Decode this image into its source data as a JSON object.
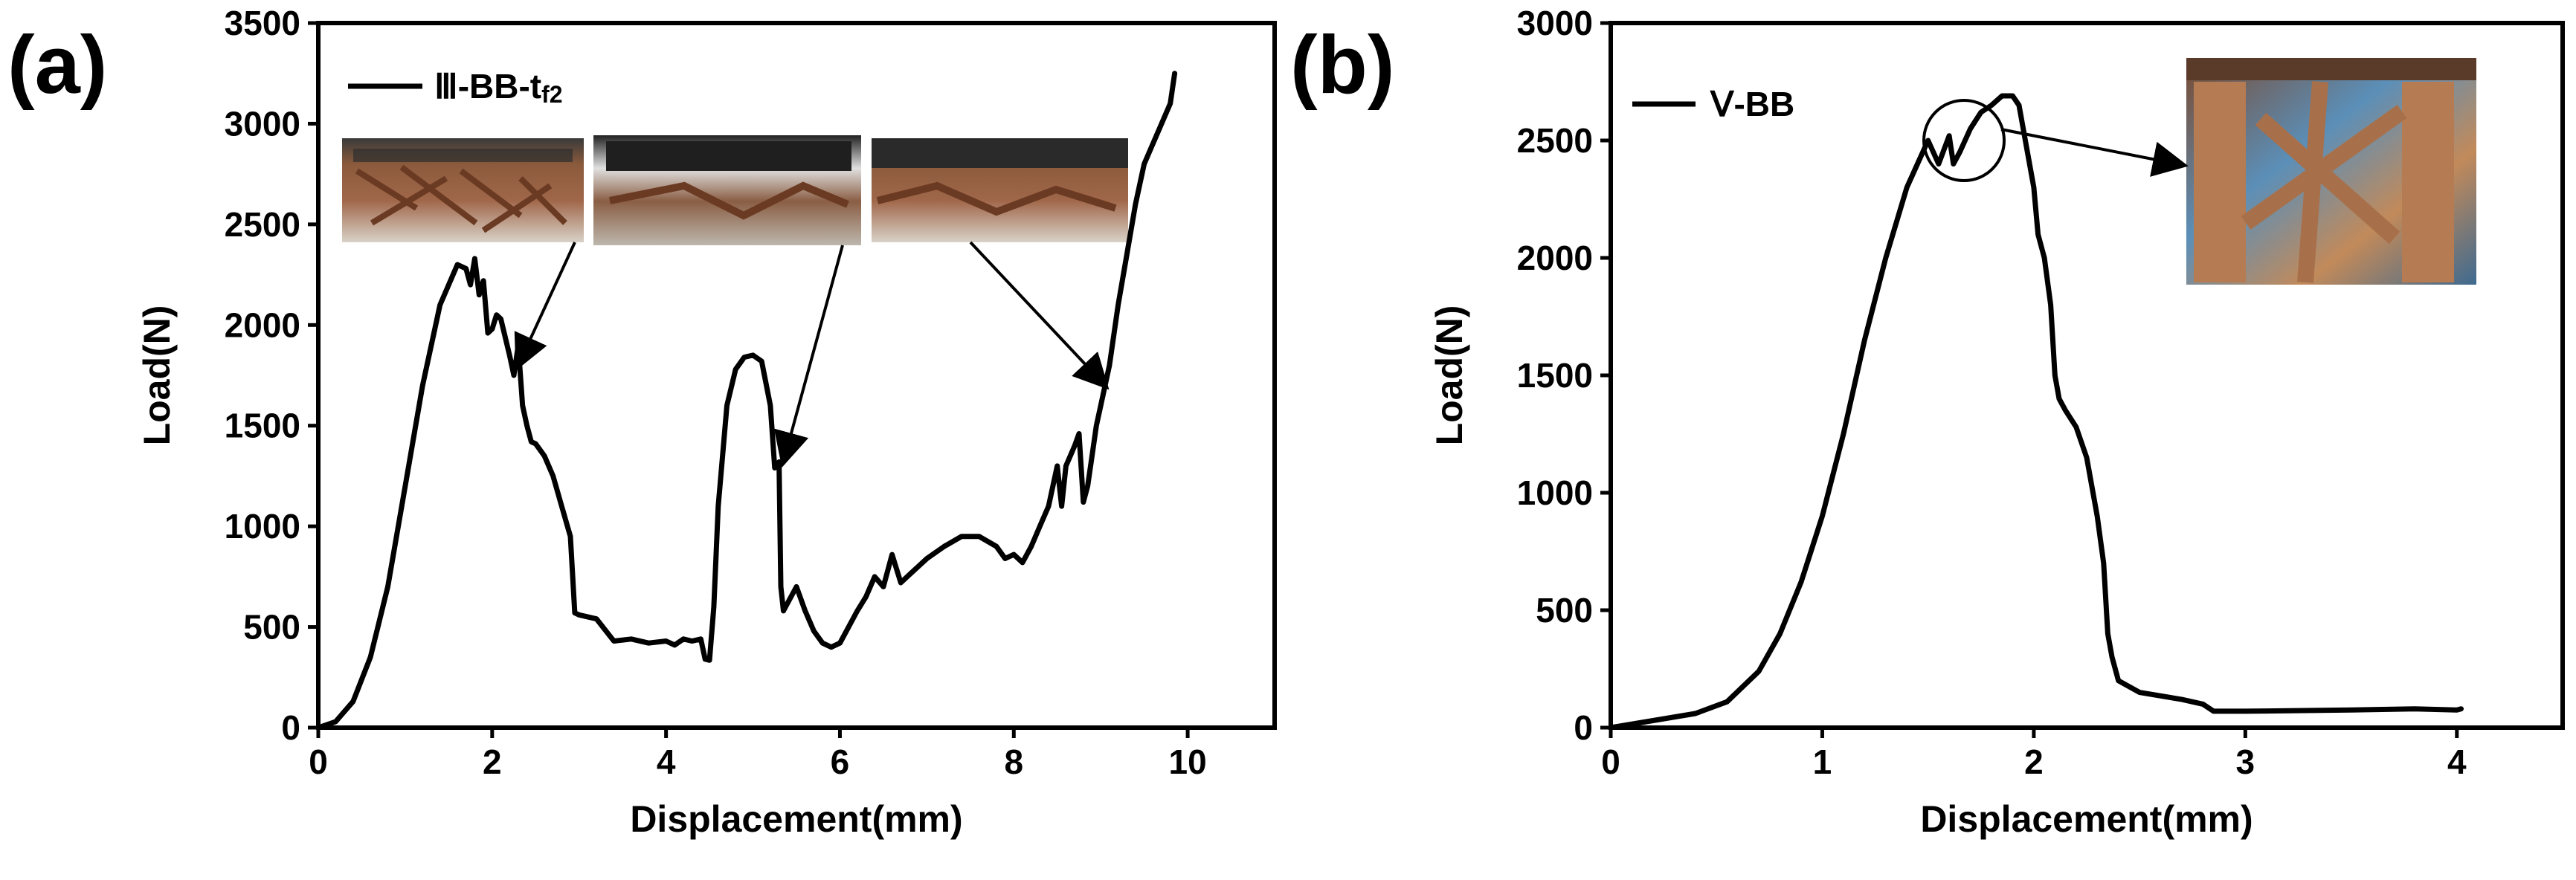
{
  "chart_data": [
    {
      "panel_label": "(a)",
      "type": "line",
      "xlabel": "Displacement(mm)",
      "ylabel": "Load(N)",
      "xlim": [
        0,
        11
      ],
      "ylim": [
        0,
        3500
      ],
      "x_ticks": [
        "0",
        "2",
        "4",
        "6",
        "8",
        "10"
      ],
      "y_ticks": [
        "0",
        "500",
        "1000",
        "1500",
        "2000",
        "2500",
        "3000",
        "3500"
      ],
      "legend": {
        "placement": "top-left",
        "label_main": "Ⅲ-BB-t",
        "label_sub": "f2"
      },
      "inset_photos": 3,
      "series": [
        {
          "name": "Ⅲ-BB-tf2",
          "x": [
            0,
            0.2,
            0.4,
            0.6,
            0.8,
            1.0,
            1.2,
            1.4,
            1.6,
            1.7,
            1.75,
            1.8,
            1.85,
            1.9,
            1.95,
            2.0,
            2.05,
            2.1,
            2.2,
            2.25,
            2.3,
            2.35,
            2.4,
            2.45,
            2.5,
            2.6,
            2.7,
            2.8,
            2.9,
            2.95,
            3.0,
            3.2,
            3.4,
            3.6,
            3.8,
            4.0,
            4.1,
            4.2,
            4.3,
            4.4,
            4.45,
            4.5,
            4.55,
            4.6,
            4.7,
            4.8,
            4.9,
            5.0,
            5.1,
            5.2,
            5.25,
            5.3,
            5.32,
            5.35,
            5.4,
            5.5,
            5.6,
            5.7,
            5.8,
            5.9,
            6.0,
            6.1,
            6.2,
            6.3,
            6.4,
            6.5,
            6.6,
            6.7,
            6.8,
            6.9,
            7.0,
            7.2,
            7.4,
            7.6,
            7.8,
            7.9,
            8.0,
            8.1,
            8.2,
            8.3,
            8.4,
            8.5,
            8.55,
            8.6,
            8.65,
            8.7,
            8.75,
            8.8,
            8.85,
            8.9,
            8.95,
            9.0,
            9.1,
            9.2,
            9.3,
            9.4,
            9.5,
            9.6,
            9.7,
            9.8,
            9.85
          ],
          "y": [
            0,
            30,
            130,
            350,
            700,
            1200,
            1700,
            2100,
            2300,
            2280,
            2200,
            2330,
            2150,
            2220,
            1960,
            1980,
            2050,
            2030,
            1850,
            1750,
            1900,
            1600,
            1500,
            1420,
            1410,
            1350,
            1250,
            1100,
            950,
            570,
            560,
            540,
            430,
            440,
            420,
            430,
            410,
            440,
            430,
            440,
            340,
            335,
            600,
            1100,
            1600,
            1780,
            1840,
            1850,
            1820,
            1600,
            1290,
            1320,
            700,
            580,
            620,
            700,
            580,
            480,
            420,
            400,
            420,
            500,
            580,
            650,
            750,
            700,
            860,
            720,
            760,
            800,
            840,
            900,
            950,
            950,
            900,
            840,
            860,
            820,
            900,
            1000,
            1100,
            1300,
            1100,
            1300,
            1350,
            1400,
            1460,
            1120,
            1200,
            1350,
            1500,
            1600,
            1800,
            2100,
            2350,
            2600,
            2800,
            2900,
            3000,
            3100,
            3250
          ]
        }
      ],
      "callouts": [
        {
          "x": 2.3,
          "y": 1800
        },
        {
          "x": 5.35,
          "y": 1320
        },
        {
          "x": 9.05,
          "y": 1700
        }
      ]
    },
    {
      "panel_label": "(b)",
      "type": "line",
      "xlabel": "Displacement(mm)",
      "ylabel": "Load(N)",
      "xlim": [
        0,
        4.5
      ],
      "ylim": [
        0,
        3000
      ],
      "x_ticks": [
        "0",
        "1",
        "2",
        "3",
        "4"
      ],
      "y_ticks": [
        "0",
        "500",
        "1000",
        "1500",
        "2000",
        "2500",
        "3000"
      ],
      "legend": {
        "placement": "top-left",
        "label_main": "Ⅴ-BB"
      },
      "inset_photos": 1,
      "series": [
        {
          "name": "Ⅴ-BB",
          "x": [
            0,
            0.2,
            0.4,
            0.55,
            0.7,
            0.8,
            0.9,
            1.0,
            1.1,
            1.2,
            1.3,
            1.4,
            1.5,
            1.55,
            1.6,
            1.62,
            1.65,
            1.7,
            1.75,
            1.8,
            1.85,
            1.9,
            1.93,
            1.96,
            2.0,
            2.02,
            2.05,
            2.08,
            2.1,
            2.12,
            2.15,
            2.2,
            2.25,
            2.3,
            2.33,
            2.35,
            2.37,
            2.4,
            2.5,
            2.7,
            2.8,
            2.85,
            3.0,
            3.5,
            3.8,
            4.0,
            4.02
          ],
          "y": [
            0,
            30,
            60,
            110,
            240,
            400,
            620,
            900,
            1250,
            1650,
            2000,
            2300,
            2500,
            2400,
            2520,
            2400,
            2450,
            2550,
            2620,
            2650,
            2690,
            2690,
            2650,
            2500,
            2300,
            2100,
            2000,
            1800,
            1500,
            1400,
            1350,
            1280,
            1150,
            900,
            700,
            400,
            300,
            200,
            150,
            120,
            100,
            70,
            70,
            75,
            80,
            75,
            80
          ]
        }
      ],
      "highlight": {
        "x": 1.67,
        "y": 2500
      }
    }
  ]
}
